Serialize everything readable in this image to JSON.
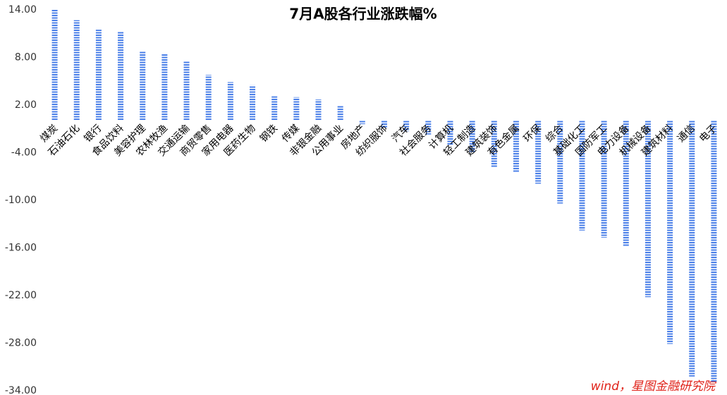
{
  "chart_data": {
    "type": "bar",
    "title": "7月A股各行业涨跌幅%",
    "source": "wind，星图金融研究院",
    "categories": [
      "煤炭",
      "石油石化",
      "银行",
      "食品饮料",
      "美容护理",
      "农林牧渔",
      "交通运输",
      "商贸零售",
      "家用电器",
      "医药生物",
      "钢铁",
      "传媒",
      "非银金融",
      "公用事业",
      "房地产",
      "纺织服饰",
      "汽车",
      "社会服务",
      "计算机",
      "轻工制造",
      "建筑装饰",
      "有色金属",
      "环保",
      "综合",
      "基础化工",
      "国防军工",
      "电力设备",
      "机械设备",
      "建筑材料",
      "通信",
      "电子"
    ],
    "values": [
      14.0,
      12.7,
      11.5,
      11.2,
      8.8,
      8.4,
      7.6,
      5.8,
      4.9,
      4.5,
      3.1,
      3.0,
      2.7,
      1.9,
      -0.4,
      -0.8,
      -1.3,
      -1.7,
      -3.0,
      -3.9,
      -5.8,
      -6.4,
      -7.9,
      -10.4,
      -13.8,
      -14.7,
      -15.8,
      -22.2,
      -28.1,
      -32.2,
      -32.9
    ],
    "color": "#4a7fe8",
    "ylim": [
      -34,
      14
    ],
    "yticks": [
      {
        "value": 14,
        "label": "14.00"
      },
      {
        "value": 8,
        "label": "8.00"
      },
      {
        "value": 2,
        "label": "2.00"
      },
      {
        "value": -4,
        "label": "-4.00"
      },
      {
        "value": -10,
        "label": "-10.00"
      },
      {
        "value": -16,
        "label": "-16.00"
      },
      {
        "value": -22,
        "label": "-22.00"
      },
      {
        "value": -28,
        "label": "-28.00"
      },
      {
        "value": -34,
        "label": "-34.00"
      }
    ],
    "grid": false
  }
}
